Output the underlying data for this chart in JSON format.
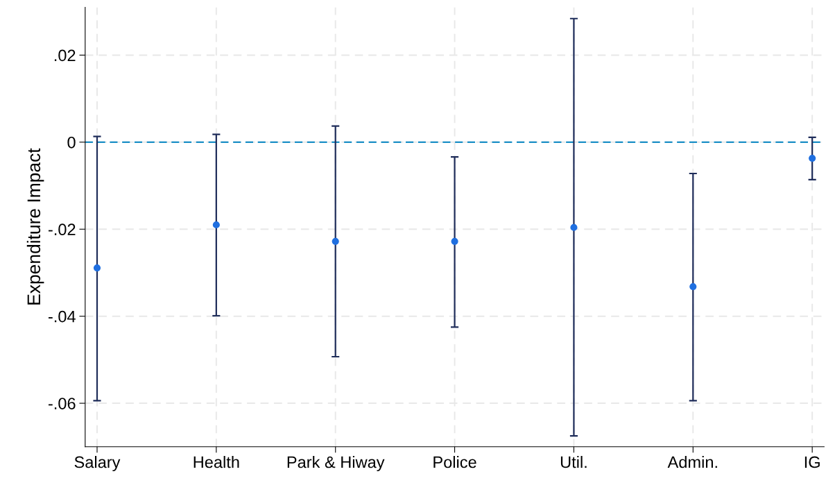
{
  "chart_data": {
    "type": "scatter",
    "ylabel": "Expenditure Impact",
    "categories": [
      "Salary",
      "Health",
      "Park & Hiway",
      "Police",
      "Util.",
      "Admin.",
      "IG"
    ],
    "values": [
      -0.0289,
      -0.019,
      -0.0228,
      -0.0228,
      -0.0196,
      -0.0332,
      -0.0037
    ],
    "errors": [
      [
        -0.0594,
        0.0013
      ],
      [
        -0.0399,
        0.0018
      ],
      [
        -0.0493,
        0.0037
      ],
      [
        -0.0425,
        -0.0034
      ],
      [
        -0.0675,
        0.0284
      ],
      [
        -0.0594,
        -0.0072
      ],
      [
        -0.0086,
        0.0011
      ]
    ],
    "color": "#1f6fe0",
    "marker": "circle",
    "ylim": [
      -0.07,
      0.031
    ],
    "yticks": [
      {
        "value": -0.06,
        "label": "-.06"
      },
      {
        "value": -0.04,
        "label": "-.04"
      },
      {
        "value": -0.02,
        "label": "-.02"
      },
      {
        "value": 0,
        "label": "0"
      },
      {
        "value": 0.02,
        "label": ".02"
      }
    ],
    "ref_lines": [
      {
        "axis": "y",
        "value": 0,
        "color": "#1b8fc6",
        "line_style": "dashed"
      }
    ],
    "grid": true
  }
}
